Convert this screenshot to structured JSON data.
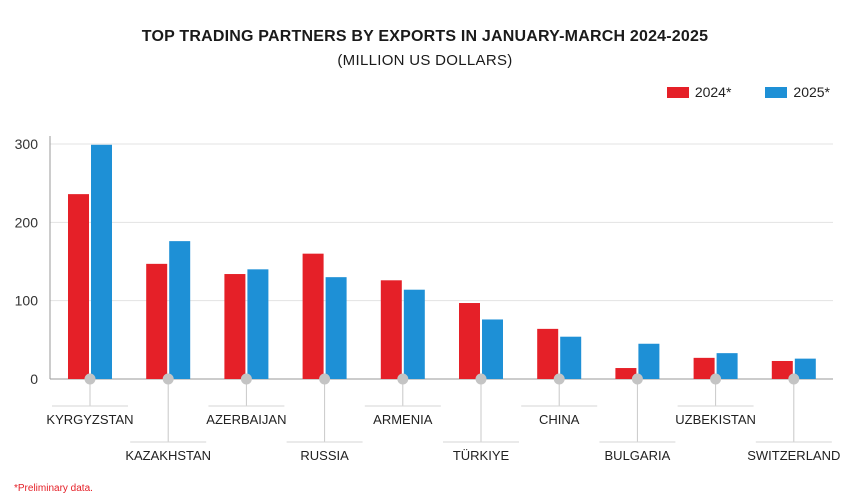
{
  "chart_data": {
    "type": "bar",
    "title": "TOP TRADING  PARTNERS BY EXPORTS IN JANUARY-MARCH 2024-2025",
    "subtitle": "(MILLION US DOLLARS)",
    "categories": [
      "KYRGYZSTAN",
      "KAZAKHSTAN",
      "AZERBAIJAN",
      "RUSSIA",
      "ARMENIA",
      "TÜRKIYE",
      "CHINA",
      "BULGARIA",
      "UZBEKISTAN",
      "SWITZERLAND"
    ],
    "series": [
      {
        "name": "2024*",
        "color": "#e52028",
        "values": [
          236,
          147,
          134,
          160,
          126,
          97,
          64,
          14,
          27,
          23
        ]
      },
      {
        "name": "2025*",
        "color": "#1e90d6",
        "values": [
          299,
          176,
          140,
          130,
          114,
          76,
          54,
          45,
          33,
          26
        ]
      }
    ],
    "ylim": [
      0,
      300
    ],
    "yticks": [
      "0",
      "100",
      "200",
      "300"
    ],
    "grid": true,
    "legend": "top-right",
    "footnote": "*Preliminary data."
  }
}
